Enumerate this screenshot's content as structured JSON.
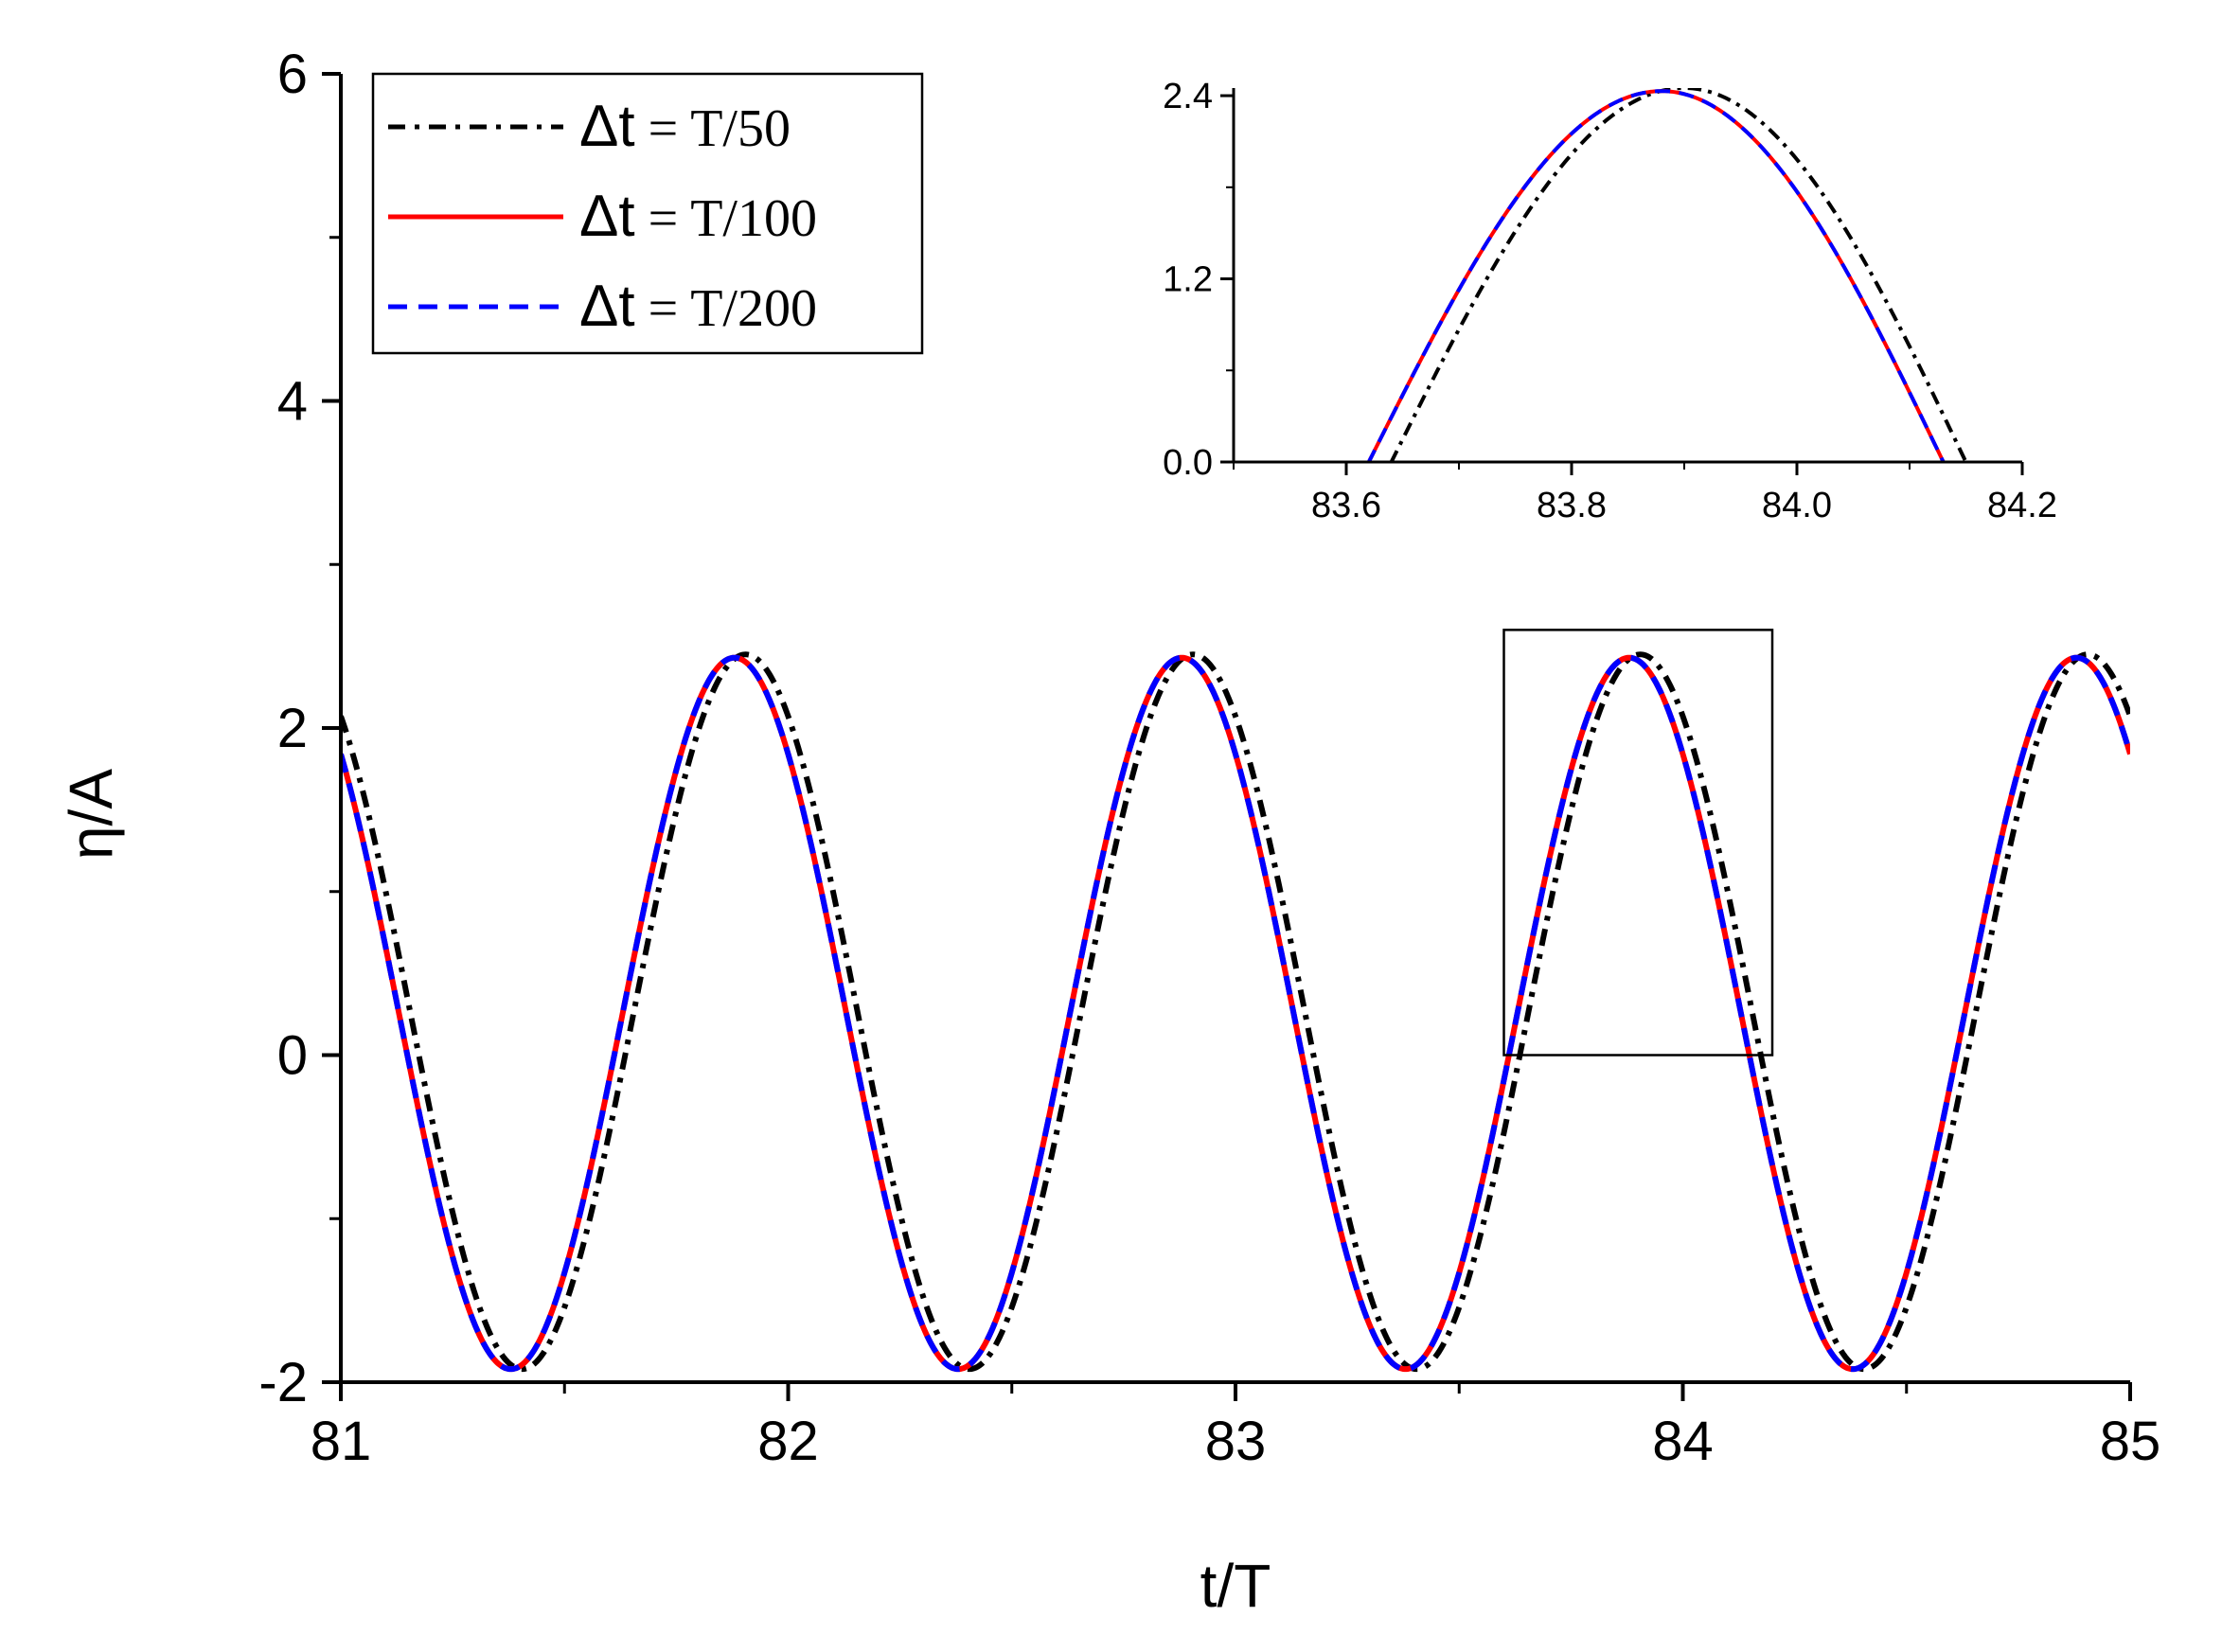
{
  "chart_data": [
    {
      "type": "line",
      "xlabel": "t/T",
      "ylabel": "η/A",
      "xlim": [
        81,
        85
      ],
      "ylim": [
        -2,
        6
      ],
      "xticks": [
        "81",
        "82",
        "83",
        "84",
        "85"
      ],
      "yticks": [
        "-2",
        "0",
        "2",
        "4",
        "6"
      ],
      "grid": false,
      "legend_position": "top-left",
      "zoom_box": {
        "x": [
          83.6,
          84.2
        ],
        "y": [
          0,
          2.6
        ]
      },
      "series": [
        {
          "name_sym": "Δt",
          "name_rest": " = T/50",
          "color": "#000000",
          "style": "dash-dot",
          "phase_shift": 0.025,
          "peaks": [
            81.9,
            82.9,
            83.9,
            84.9
          ],
          "troughs": [
            81.4,
            82.4,
            83.4,
            84.4
          ],
          "x": [
            81.0,
            81.4,
            81.9,
            82.4,
            82.9,
            83.4,
            83.9,
            84.4,
            84.9,
            85.0
          ],
          "y": [
            1.85,
            -1.92,
            2.45,
            -1.92,
            2.45,
            -1.92,
            2.45,
            -1.92,
            2.45,
            1.9
          ]
        },
        {
          "name_sym": "Δt",
          "name_rest": " = T/100",
          "color": "#ff0000",
          "style": "solid",
          "phase_shift": 0.0,
          "peaks": [
            81.88,
            82.88,
            83.88,
            84.88
          ],
          "troughs": [
            81.38,
            82.38,
            83.38,
            84.38
          ],
          "x": [
            81.0,
            81.38,
            81.88,
            82.38,
            82.88,
            83.38,
            83.88,
            84.38,
            84.88,
            85.0
          ],
          "y": [
            1.6,
            -1.92,
            2.43,
            -1.92,
            2.43,
            -1.92,
            2.43,
            -1.92,
            2.43,
            1.55
          ]
        },
        {
          "name_sym": "Δt",
          "name_rest": " = T/200",
          "color": "#0000ff",
          "style": "dashed",
          "phase_shift": 0.0,
          "peaks": [
            81.88,
            82.88,
            83.88,
            84.88
          ],
          "troughs": [
            81.38,
            82.38,
            83.38,
            84.38
          ],
          "x": [
            81.0,
            81.38,
            81.88,
            82.38,
            82.88,
            83.38,
            83.88,
            84.38,
            84.88,
            85.0
          ],
          "y": [
            1.6,
            -1.92,
            2.43,
            -1.92,
            2.43,
            -1.92,
            2.43,
            -1.92,
            2.43,
            1.55
          ]
        }
      ]
    },
    {
      "type": "line",
      "xlabel": "",
      "ylabel": "",
      "xlim": [
        83.5,
        84.2
      ],
      "ylim": [
        0,
        2.45
      ],
      "xticks": [
        "83.6",
        "83.8",
        "84.0",
        "84.2"
      ],
      "yticks": [
        "0.0",
        "1.2",
        "2.4"
      ],
      "grid": false,
      "series": [
        {
          "color": "#000000",
          "style": "dash-dot",
          "x": [
            83.64,
            83.9,
            84.15
          ],
          "y": [
            0,
            2.45,
            0
          ]
        },
        {
          "color": "#ff0000",
          "style": "solid",
          "x": [
            83.62,
            83.88,
            84.13
          ],
          "y": [
            0,
            2.43,
            0
          ]
        },
        {
          "color": "#0000ff",
          "style": "dashed",
          "x": [
            83.62,
            83.88,
            84.13
          ],
          "y": [
            0,
            2.43,
            0
          ]
        }
      ]
    }
  ]
}
